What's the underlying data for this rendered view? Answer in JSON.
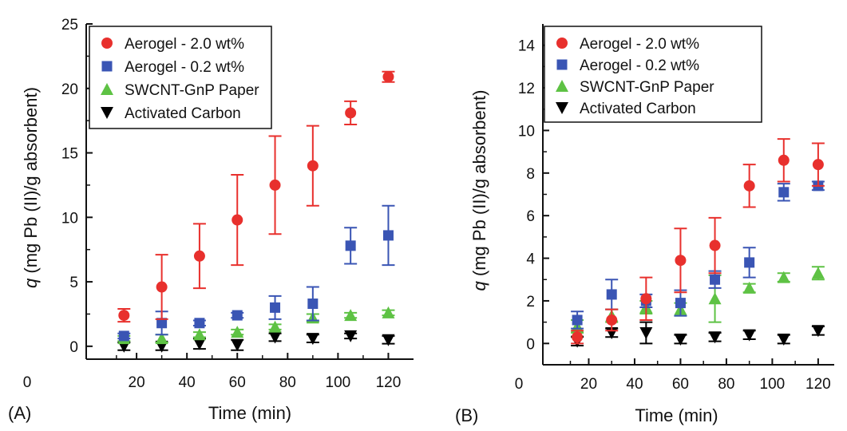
{
  "chart_data": [
    {
      "type": "scatter",
      "panel_label": "(A)",
      "xlabel": "Time (min)",
      "ylabel_italic": "q",
      "ylabel_rest": " (mg Pb (II)/g absorbent)",
      "xlim": [
        0,
        130
      ],
      "ylim": [
        -1,
        25
      ],
      "xticks": [
        0,
        20,
        40,
        60,
        80,
        100,
        120
      ],
      "yticks": [
        0,
        5,
        10,
        15,
        20,
        25
      ],
      "legend_position": "top-left",
      "series": [
        {
          "name": "Aerogel - 2.0 wt%",
          "marker": "circle",
          "color": "#e8302d",
          "x": [
            15,
            30,
            45,
            60,
            75,
            90,
            105,
            120
          ],
          "y": [
            2.4,
            4.6,
            7.0,
            9.8,
            12.5,
            14.0,
            18.1,
            20.9
          ],
          "err": [
            0.5,
            2.5,
            2.5,
            3.5,
            3.8,
            3.1,
            0.9,
            0.4
          ]
        },
        {
          "name": "Aerogel - 0.2 wt%",
          "marker": "square",
          "color": "#3a55b4",
          "x": [
            15,
            30,
            45,
            60,
            75,
            90,
            105,
            120
          ],
          "y": [
            0.8,
            1.8,
            1.8,
            2.4,
            3.0,
            3.3,
            7.8,
            8.6
          ],
          "err": [
            0.2,
            0.9,
            0.2,
            0.2,
            0.9,
            1.3,
            1.4,
            2.3
          ]
        },
        {
          "name": "SWCNT-GnP Paper",
          "marker": "triangle-up",
          "color": "#5ec244",
          "x": [
            15,
            30,
            45,
            60,
            75,
            90,
            105,
            120
          ],
          "y": [
            0.6,
            0.6,
            0.9,
            1.1,
            1.5,
            2.2,
            2.4,
            2.6
          ],
          "err": [
            0.2,
            0.3,
            0.2,
            0.2,
            0.2,
            0.3,
            0.2,
            0.2
          ]
        },
        {
          "name": "Activated Carbon",
          "marker": "triangle-down",
          "color": "#000000",
          "x": [
            15,
            30,
            45,
            60,
            75,
            90,
            105,
            120
          ],
          "y": [
            0.0,
            0.0,
            0.2,
            0.1,
            0.7,
            0.6,
            0.8,
            0.5
          ],
          "err": [
            0.3,
            0.3,
            0.4,
            0.4,
            0.3,
            0.3,
            0.2,
            0.3
          ]
        }
      ]
    },
    {
      "type": "scatter",
      "panel_label": "(B)",
      "xlabel": "Time (min)",
      "ylabel_italic": "q",
      "ylabel_rest": " (mg Pb (II)/g absorbent)",
      "xlim": [
        0,
        127
      ],
      "ylim": [
        -1,
        15
      ],
      "xticks": [
        0,
        20,
        40,
        60,
        80,
        100,
        120
      ],
      "yticks": [
        0,
        2,
        4,
        6,
        8,
        10,
        12,
        14
      ],
      "legend_position": "top-left",
      "series": [
        {
          "name": "Aerogel - 2.0 wt%",
          "marker": "circle",
          "color": "#e8302d",
          "x": [
            15,
            30,
            45,
            60,
            75,
            90,
            105,
            120
          ],
          "y": [
            0.3,
            1.1,
            2.1,
            3.9,
            4.6,
            7.4,
            8.6,
            8.4
          ],
          "err": [
            0.3,
            0.5,
            1.0,
            1.5,
            1.3,
            1.0,
            1.0,
            1.0
          ]
        },
        {
          "name": "Aerogel - 0.2 wt%",
          "marker": "square",
          "color": "#3a55b4",
          "x": [
            15,
            30,
            45,
            60,
            75,
            90,
            105,
            120
          ],
          "y": [
            1.1,
            2.3,
            2.0,
            1.9,
            3.0,
            3.8,
            7.1,
            7.4
          ],
          "err": [
            0.4,
            0.7,
            0.3,
            0.6,
            0.4,
            0.7,
            0.4,
            0.2
          ]
        },
        {
          "name": "SWCNT-GnP Paper",
          "marker": "triangle-up",
          "color": "#5ec244",
          "x": [
            15,
            30,
            45,
            60,
            75,
            90,
            105,
            120
          ],
          "y": [
            0.8,
            1.3,
            1.7,
            1.6,
            2.1,
            2.6,
            3.1,
            3.3
          ],
          "err": [
            0.3,
            0.3,
            0.3,
            0.3,
            1.1,
            0.2,
            0.2,
            0.3
          ]
        },
        {
          "name": "Activated Carbon",
          "marker": "triangle-down",
          "color": "#000000",
          "x": [
            15,
            30,
            45,
            60,
            75,
            90,
            105,
            120
          ],
          "y": [
            0.1,
            0.5,
            0.5,
            0.2,
            0.3,
            0.4,
            0.2,
            0.6
          ],
          "err": [
            0.2,
            0.2,
            0.5,
            0.2,
            0.2,
            0.2,
            0.2,
            0.2
          ]
        }
      ]
    }
  ]
}
